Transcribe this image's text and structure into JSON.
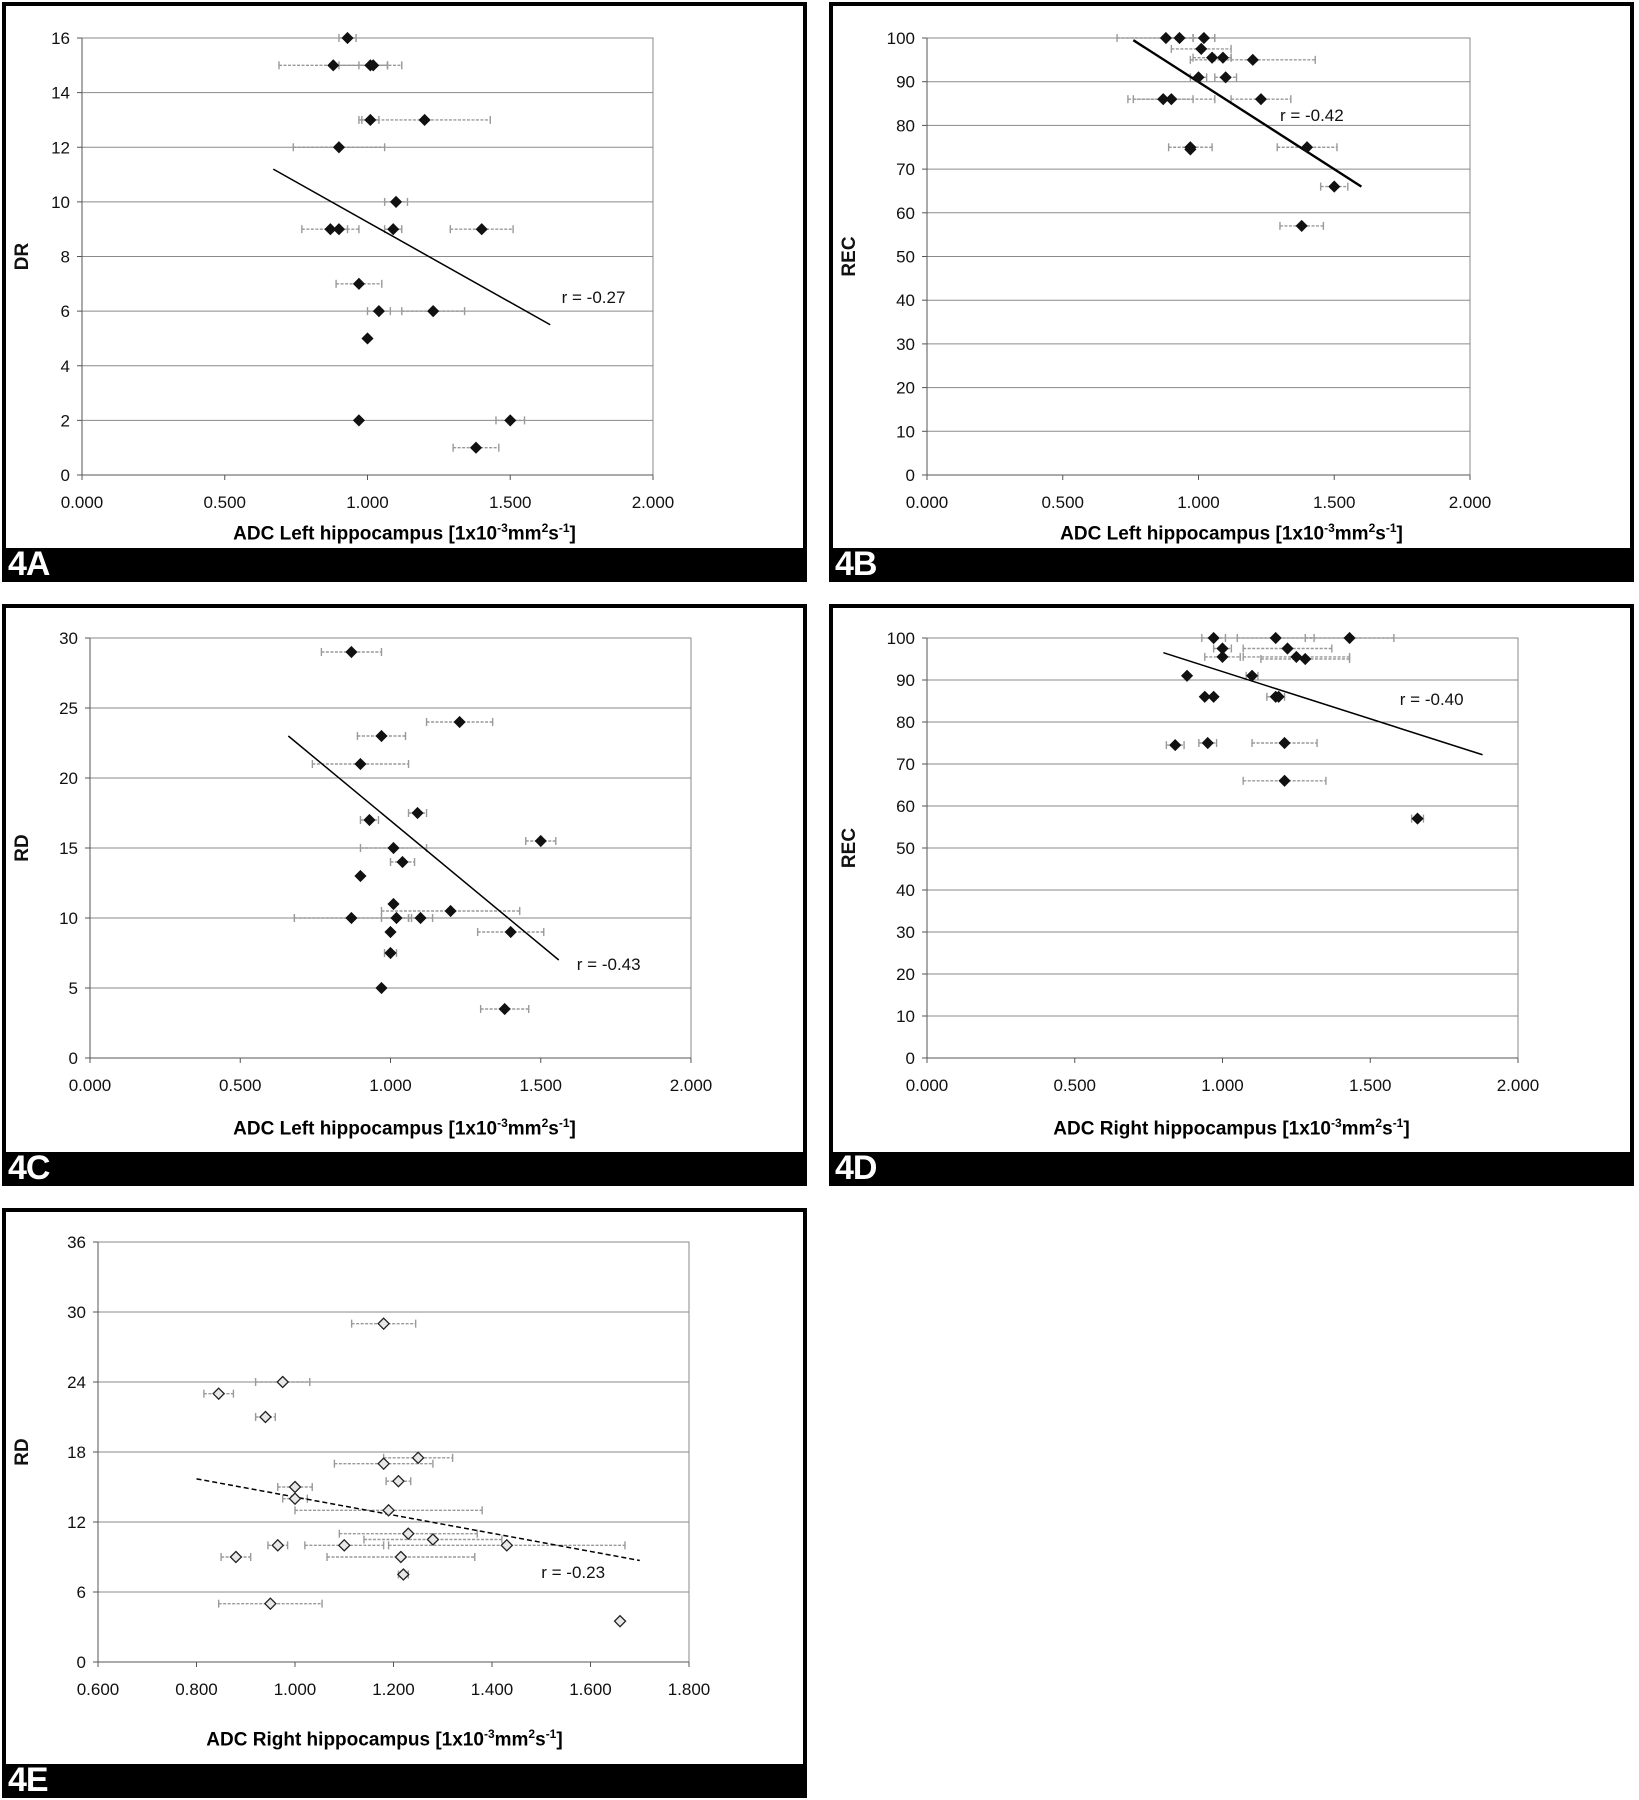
{
  "chart_data": [
    {
      "id": "4A",
      "type": "scatter",
      "panel_label": "4A",
      "xlabel": "ADC Left hippocampus [1x10",
      "xlabel_exp1": "-3",
      "xlabel_mid": "mm",
      "xlabel_exp2": "2",
      "xlabel_s": "s",
      "xlabel_exp3": "-1",
      "xlabel_end": "]",
      "ylabel": "DR",
      "xlim": [
        0,
        2
      ],
      "ylim": [
        0,
        16
      ],
      "xticks": [
        "0.000",
        "0.500",
        "1.000",
        "1.500",
        "2.000"
      ],
      "yticks": [
        "0",
        "2",
        "4",
        "6",
        "8",
        "10",
        "12",
        "14",
        "16"
      ],
      "xtick_values": [
        0,
        0.5,
        1.0,
        1.5,
        2.0
      ],
      "ytick_values": [
        0,
        2,
        4,
        6,
        8,
        10,
        12,
        14,
        16
      ],
      "grid": "horizontal",
      "marker": "filled-diamond",
      "points": [
        {
          "x": 0.93,
          "y": 16,
          "err": 0.03
        },
        {
          "x": 0.88,
          "y": 15,
          "err": 0.19
        },
        {
          "x": 1.01,
          "y": 15,
          "err": 0.11
        },
        {
          "x": 1.02,
          "y": 15,
          "err": 0.05
        },
        {
          "x": 1.01,
          "y": 13,
          "err": 0.03
        },
        {
          "x": 1.2,
          "y": 13,
          "err": 0.23
        },
        {
          "x": 0.9,
          "y": 12,
          "err": 0.16
        },
        {
          "x": 1.1,
          "y": 10,
          "err": 0.04
        },
        {
          "x": 0.87,
          "y": 9,
          "err": 0.1
        },
        {
          "x": 0.9,
          "y": 9,
          "err": 0.03
        },
        {
          "x": 1.09,
          "y": 9,
          "err": 0.03
        },
        {
          "x": 1.4,
          "y": 9,
          "err": 0.11
        },
        {
          "x": 0.97,
          "y": 7,
          "err": 0.08
        },
        {
          "x": 1.04,
          "y": 6,
          "err": 0.04
        },
        {
          "x": 1.23,
          "y": 6,
          "err": 0.11
        },
        {
          "x": 1.0,
          "y": 5,
          "err": 0.0
        },
        {
          "x": 0.97,
          "y": 2,
          "err": 0.0
        },
        {
          "x": 1.5,
          "y": 2,
          "err": 0.05
        },
        {
          "x": 1.38,
          "y": 1,
          "err": 0.08
        }
      ],
      "trendline": {
        "x1": 0.67,
        "y1": 11.2,
        "x2": 1.64,
        "y2": 5.5,
        "style": "solid"
      },
      "annotation": "r = -0.27",
      "annotation_pos": {
        "x": 1.68,
        "y": 6.3
      }
    },
    {
      "id": "4B",
      "type": "scatter",
      "panel_label": "4B",
      "xlabel": "ADC Left hippocampus [1x10",
      "xlabel_exp1": "-3",
      "xlabel_mid": "mm",
      "xlabel_exp2": "2",
      "xlabel_s": "s",
      "xlabel_exp3": "-1",
      "xlabel_end": "]",
      "ylabel": "REC",
      "xlim": [
        0,
        2
      ],
      "ylim": [
        0,
        100
      ],
      "xticks": [
        "0.000",
        "0.500",
        "1.000",
        "1.500",
        "2.000"
      ],
      "yticks": [
        "0",
        "10",
        "20",
        "30",
        "40",
        "50",
        "60",
        "70",
        "80",
        "90",
        "100"
      ],
      "xtick_values": [
        0,
        0.5,
        1.0,
        1.5,
        2.0
      ],
      "ytick_values": [
        0,
        10,
        20,
        30,
        40,
        50,
        60,
        70,
        80,
        90,
        100
      ],
      "grid": "horizontal",
      "marker": "filled-diamond",
      "points": [
        {
          "x": 0.88,
          "y": 100,
          "err": 0.18
        },
        {
          "x": 0.93,
          "y": 100,
          "err": 0.05
        },
        {
          "x": 1.02,
          "y": 100,
          "err": 0.04
        },
        {
          "x": 1.01,
          "y": 97.5,
          "err": 0.11
        },
        {
          "x": 1.05,
          "y": 95.5,
          "err": 0.07
        },
        {
          "x": 1.09,
          "y": 95.5,
          "err": 0.03
        },
        {
          "x": 1.2,
          "y": 95,
          "err": 0.23
        },
        {
          "x": 1.0,
          "y": 91,
          "err": 0.03
        },
        {
          "x": 1.1,
          "y": 91,
          "err": 0.04
        },
        {
          "x": 0.87,
          "y": 86,
          "err": 0.11
        },
        {
          "x": 0.9,
          "y": 86,
          "err": 0.16
        },
        {
          "x": 1.23,
          "y": 86,
          "err": 0.11
        },
        {
          "x": 0.97,
          "y": 75,
          "err": 0.08
        },
        {
          "x": 0.97,
          "y": 74.5,
          "err": 0.0
        },
        {
          "x": 1.4,
          "y": 75,
          "err": 0.11
        },
        {
          "x": 1.5,
          "y": 66,
          "err": 0.05
        },
        {
          "x": 1.38,
          "y": 57,
          "err": 0.08
        }
      ],
      "trendline": {
        "x1": 0.76,
        "y1": 99.5,
        "x2": 1.6,
        "y2": 66,
        "style": "solid"
      },
      "annotation": "r = -0.42",
      "annotation_pos": {
        "x": 1.3,
        "y": 81
      }
    },
    {
      "id": "4C",
      "type": "scatter",
      "panel_label": "4C",
      "xlabel": "ADC Left hippocampus [1x10",
      "xlabel_exp1": "-3",
      "xlabel_mid": "mm",
      "xlabel_exp2": "2",
      "xlabel_s": "s",
      "xlabel_exp3": "-1",
      "xlabel_end": "]",
      "ylabel": "RD",
      "xlim": [
        0,
        2
      ],
      "ylim": [
        0,
        30
      ],
      "xticks": [
        "0.000",
        "0.500",
        "1.000",
        "1.500",
        "2.000"
      ],
      "yticks": [
        "0",
        "5",
        "10",
        "15",
        "20",
        "25",
        "30"
      ],
      "xtick_values": [
        0,
        0.5,
        1.0,
        1.5,
        2.0
      ],
      "ytick_values": [
        0,
        5,
        10,
        15,
        20,
        25,
        30
      ],
      "grid": "horizontal",
      "marker": "filled-diamond",
      "points": [
        {
          "x": 0.87,
          "y": 29,
          "err": 0.1
        },
        {
          "x": 1.23,
          "y": 24,
          "err": 0.11
        },
        {
          "x": 0.97,
          "y": 23,
          "err": 0.08
        },
        {
          "x": 0.9,
          "y": 21,
          "err": 0.16
        },
        {
          "x": 1.09,
          "y": 17.5,
          "err": 0.03
        },
        {
          "x": 0.93,
          "y": 17,
          "err": 0.03
        },
        {
          "x": 1.5,
          "y": 15.5,
          "err": 0.05
        },
        {
          "x": 1.01,
          "y": 15,
          "err": 0.11
        },
        {
          "x": 1.04,
          "y": 14,
          "err": 0.04
        },
        {
          "x": 0.9,
          "y": 13,
          "err": 0.0
        },
        {
          "x": 1.01,
          "y": 11,
          "err": 0.0
        },
        {
          "x": 1.2,
          "y": 10.5,
          "err": 0.23
        },
        {
          "x": 0.87,
          "y": 10,
          "err": 0.19
        },
        {
          "x": 1.02,
          "y": 10,
          "err": 0.05
        },
        {
          "x": 1.1,
          "y": 10,
          "err": 0.04
        },
        {
          "x": 1.4,
          "y": 9,
          "err": 0.11
        },
        {
          "x": 1.0,
          "y": 9,
          "err": 0.0
        },
        {
          "x": 1.0,
          "y": 7.5,
          "err": 0.02
        },
        {
          "x": 0.97,
          "y": 5,
          "err": 0.0
        },
        {
          "x": 1.38,
          "y": 3.5,
          "err": 0.08
        }
      ],
      "trendline": {
        "x1": 0.66,
        "y1": 23,
        "x2": 1.56,
        "y2": 7,
        "style": "solid"
      },
      "annotation": "r =  -0.43",
      "annotation_pos": {
        "x": 1.62,
        "y": 6.3
      }
    },
    {
      "id": "4D",
      "type": "scatter",
      "panel_label": "4D",
      "xlabel": "ADC Right hippocampus [1x10",
      "xlabel_exp1": "-3",
      "xlabel_mid": "mm",
      "xlabel_exp2": "2",
      "xlabel_s": "s",
      "xlabel_exp3": "-1",
      "xlabel_end": "]",
      "ylabel": "REC",
      "xlim": [
        0,
        2
      ],
      "ylim": [
        0,
        100
      ],
      "xticks": [
        "0.000",
        "0.500",
        "1.000",
        "1.500",
        "2.000"
      ],
      "yticks": [
        "0",
        "10",
        "20",
        "30",
        "40",
        "50",
        "60",
        "70",
        "80",
        "90",
        "100"
      ],
      "xtick_values": [
        0,
        0.5,
        1.0,
        1.5,
        2.0
      ],
      "ytick_values": [
        0,
        10,
        20,
        30,
        40,
        50,
        60,
        70,
        80,
        90,
        100
      ],
      "grid": "horizontal",
      "marker": "filled-diamond",
      "points": [
        {
          "x": 0.97,
          "y": 100,
          "err": 0.04
        },
        {
          "x": 1.18,
          "y": 100,
          "err": 0.13
        },
        {
          "x": 1.43,
          "y": 100,
          "err": 0.15
        },
        {
          "x": 1.0,
          "y": 97.5,
          "err": 0.03
        },
        {
          "x": 1.22,
          "y": 97.5,
          "err": 0.15
        },
        {
          "x": 1.0,
          "y": 95.5,
          "err": 0.06
        },
        {
          "x": 1.25,
          "y": 95.5,
          "err": 0.18
        },
        {
          "x": 1.28,
          "y": 95,
          "err": 0.15
        },
        {
          "x": 0.88,
          "y": 91,
          "err": 0.0
        },
        {
          "x": 1.1,
          "y": 91,
          "err": 0.02
        },
        {
          "x": 0.94,
          "y": 86,
          "err": 0.0
        },
        {
          "x": 0.97,
          "y": 86,
          "err": 0.0
        },
        {
          "x": 1.18,
          "y": 86,
          "err": 0.03
        },
        {
          "x": 1.19,
          "y": 86,
          "err": 0.0
        },
        {
          "x": 0.84,
          "y": 74.5,
          "err": 0.03
        },
        {
          "x": 0.95,
          "y": 75,
          "err": 0.03
        },
        {
          "x": 1.21,
          "y": 75,
          "err": 0.11
        },
        {
          "x": 1.21,
          "y": 66,
          "err": 0.14
        },
        {
          "x": 1.66,
          "y": 57,
          "err": 0.02
        }
      ],
      "trendline": {
        "x1": 0.8,
        "y1": 96.5,
        "x2": 1.88,
        "y2": 72.2,
        "style": "solid"
      },
      "annotation": "r = -0.40",
      "annotation_pos": {
        "x": 1.6,
        "y": 84
      }
    },
    {
      "id": "4E",
      "type": "scatter",
      "panel_label": "4E",
      "xlabel": "ADC Right hippocampus [1x10",
      "xlabel_exp1": "-3",
      "xlabel_mid": "mm",
      "xlabel_exp2": "2",
      "xlabel_s": "s",
      "xlabel_exp3": "-1",
      "xlabel_end": "]",
      "ylabel": "RD",
      "xlim": [
        0.6,
        1.8
      ],
      "ylim": [
        0,
        36
      ],
      "xticks": [
        "0.600",
        "0.800",
        "1.000",
        "1.200",
        "1.400",
        "1.600",
        "1.800"
      ],
      "yticks": [
        "0",
        "6",
        "12",
        "18",
        "24",
        "30",
        "36"
      ],
      "xtick_values": [
        0.6,
        0.8,
        1.0,
        1.2,
        1.4,
        1.6,
        1.8
      ],
      "ytick_values": [
        0,
        6,
        12,
        18,
        24,
        30,
        36
      ],
      "grid": "horizontal",
      "marker": "open-diamond",
      "points": [
        {
          "x": 1.18,
          "y": 29,
          "err": 0.065
        },
        {
          "x": 0.975,
          "y": 24,
          "err": 0.055
        },
        {
          "x": 0.845,
          "y": 23,
          "err": 0.03
        },
        {
          "x": 0.94,
          "y": 21,
          "err": 0.02
        },
        {
          "x": 1.25,
          "y": 17.5,
          "err": 0.07
        },
        {
          "x": 1.18,
          "y": 17,
          "err": 0.1
        },
        {
          "x": 1.21,
          "y": 15.5,
          "err": 0.025
        },
        {
          "x": 1.0,
          "y": 15,
          "err": 0.035
        },
        {
          "x": 1.0,
          "y": 14,
          "err": 0.025
        },
        {
          "x": 1.19,
          "y": 13,
          "err": 0.19
        },
        {
          "x": 1.23,
          "y": 11,
          "err": 0.14
        },
        {
          "x": 1.28,
          "y": 10.5,
          "err": 0.14
        },
        {
          "x": 0.965,
          "y": 10,
          "err": 0.02
        },
        {
          "x": 1.1,
          "y": 10,
          "err": 0.08
        },
        {
          "x": 1.43,
          "y": 10,
          "err": 0.24
        },
        {
          "x": 0.88,
          "y": 9,
          "err": 0.03
        },
        {
          "x": 1.215,
          "y": 9,
          "err": 0.15
        },
        {
          "x": 1.22,
          "y": 7.5,
          "err": 0.01
        },
        {
          "x": 0.95,
          "y": 5,
          "err": 0.105
        },
        {
          "x": 1.66,
          "y": 3.5,
          "err": 0.0
        }
      ],
      "trendline": {
        "x1": 0.8,
        "y1": 15.7,
        "x2": 1.7,
        "y2": 8.7,
        "style": "dashed"
      },
      "annotation": "r = -0.23",
      "annotation_pos": {
        "x": 1.5,
        "y": 7.2
      }
    }
  ]
}
